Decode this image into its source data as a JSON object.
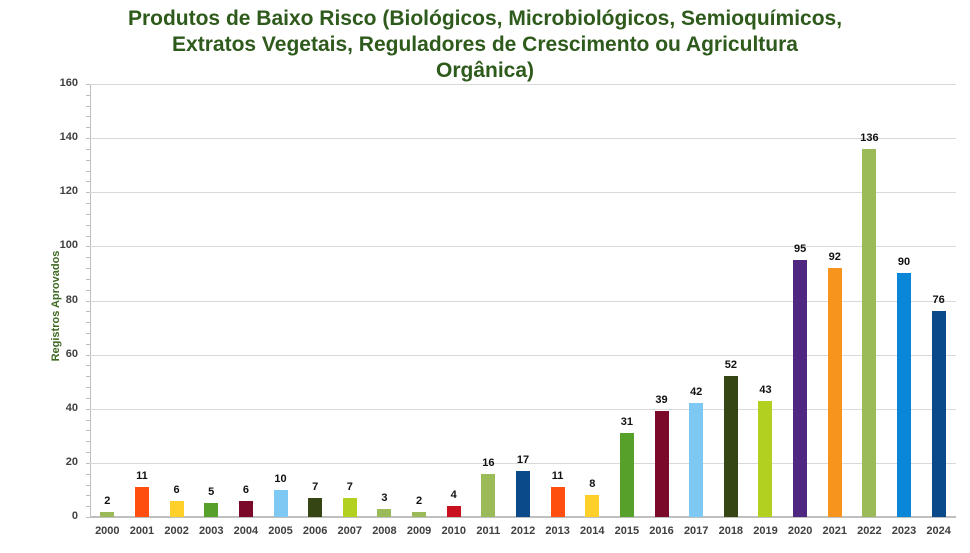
{
  "chart_data": {
    "type": "bar",
    "title": "Produtos de Baixo Risco (Biológicos, Microbiológicos, Semioquímicos, Extratos Vegetais, Reguladores de Crescimento ou Agricultura Orgânica)",
    "title_lines": [
      "Produtos de Baixo Risco (Biológicos, Microbiológicos, Semioquímicos,",
      "Extratos Vegetais, Reguladores de Crescimento ou Agricultura",
      "Orgânica)"
    ],
    "xlabel": "",
    "ylabel": "Registros Aprovados",
    "ylim": [
      0,
      160
    ],
    "yticks": [
      0,
      20,
      40,
      60,
      80,
      100,
      120,
      140,
      160
    ],
    "grid": true,
    "legend": false,
    "categories": [
      "2000",
      "2001",
      "2002",
      "2003",
      "2004",
      "2005",
      "2006",
      "2007",
      "2008",
      "2009",
      "2010",
      "2011",
      "2012",
      "2013",
      "2014",
      "2015",
      "2016",
      "2017",
      "2018",
      "2019",
      "2020",
      "2021",
      "2022",
      "2023",
      "2024"
    ],
    "values": [
      2,
      11,
      6,
      5,
      6,
      10,
      7,
      7,
      3,
      2,
      4,
      16,
      17,
      11,
      8,
      31,
      39,
      42,
      52,
      43,
      95,
      92,
      136,
      90,
      76
    ],
    "colors": [
      "#9bbb59",
      "#ff4f0f",
      "#ffd02a",
      "#57a02a",
      "#7b0a2a",
      "#7ec8f4",
      "#364514",
      "#b2d020",
      "#9bbb59",
      "#9bbb59",
      "#c8101e",
      "#9bbb59",
      "#0b4a8a",
      "#ff4f0f",
      "#ffd02a",
      "#57a02a",
      "#7b0a2a",
      "#7ec8f4",
      "#364514",
      "#b2d020",
      "#4f2680",
      "#f7941d",
      "#9bbb59",
      "#0a86d8",
      "#0b4a8a"
    ]
  }
}
